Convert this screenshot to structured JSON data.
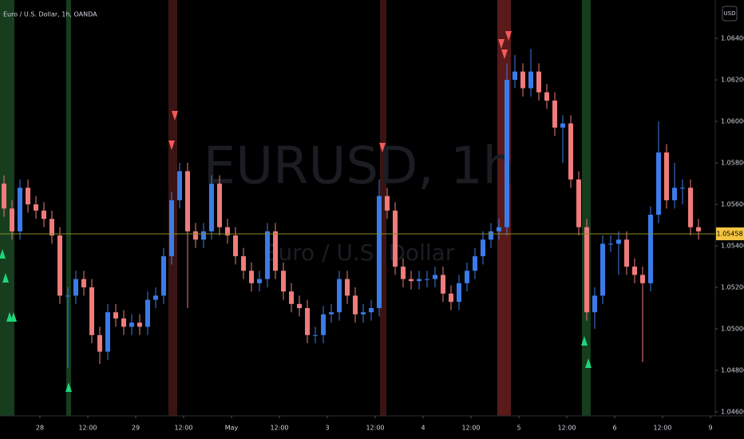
{
  "chart_data": {
    "type": "candlestick",
    "title": "Euro / U.S. Dollar, 1h, OANDA",
    "currency": "USD",
    "watermark": {
      "symbol": "EURUSD, 1h",
      "description": "Euro / U.S. Dollar"
    },
    "up_color": "#3b7be8",
    "down_color": "#ef7b7b",
    "current_price": 1.05458,
    "ylim": [
      1.04546,
      1.06585
    ],
    "yticks": [
      {
        "value": 1.064,
        "label": "1.06400"
      },
      {
        "value": 1.062,
        "label": "1.06200"
      },
      {
        "value": 1.06,
        "label": "1.06000"
      },
      {
        "value": 1.058,
        "label": "1.05800"
      },
      {
        "value": 1.056,
        "label": "1.05600"
      },
      {
        "value": 1.054,
        "label": "1.05400"
      },
      {
        "value": 1.052,
        "label": "1.05200"
      },
      {
        "value": 1.05,
        "label": "1.05000"
      },
      {
        "value": 1.048,
        "label": "1.04800"
      },
      {
        "value": 1.046,
        "label": "1.04600"
      }
    ],
    "xlim": [
      -0.5,
      89
    ],
    "xticks": [
      {
        "value": 4.5,
        "label": "28"
      },
      {
        "value": 10.5,
        "label": "12:00"
      },
      {
        "value": 16.5,
        "label": "29"
      },
      {
        "value": 22.5,
        "label": "12:00"
      },
      {
        "value": 28.5,
        "label": "May"
      },
      {
        "value": 34.5,
        "label": "12:00"
      },
      {
        "value": 40.5,
        "label": "3"
      },
      {
        "value": 46.5,
        "label": "12:00"
      },
      {
        "value": 52.5,
        "label": "4"
      },
      {
        "value": 58.5,
        "label": "12:00"
      },
      {
        "value": 64.5,
        "label": "5"
      },
      {
        "value": 70.5,
        "label": "12:00"
      },
      {
        "value": 76.5,
        "label": "6"
      },
      {
        "value": 82.5,
        "label": "12:00"
      },
      {
        "value": 88.5,
        "label": "9"
      }
    ],
    "candles": [
      [
        1.057,
        1.0574,
        1.0554,
        1.0558
      ],
      [
        1.0558,
        1.0562,
        1.0543,
        1.0547
      ],
      [
        1.0547,
        1.0572,
        1.0543,
        1.0568
      ],
      [
        1.0568,
        1.0572,
        1.0556,
        1.056
      ],
      [
        1.056,
        1.0564,
        1.0553,
        1.0557
      ],
      [
        1.0557,
        1.0561,
        1.0549,
        1.0553
      ],
      [
        1.0553,
        1.0557,
        1.0541,
        1.0545
      ],
      [
        1.0545,
        1.0549,
        1.0512,
        1.0516
      ],
      [
        1.0516,
        1.052,
        1.0481,
        1.0516
      ],
      [
        1.0516,
        1.0528,
        1.0512,
        1.0524
      ],
      [
        1.0524,
        1.0528,
        1.0516,
        1.052
      ],
      [
        1.052,
        1.0524,
        1.0493,
        1.0497
      ],
      [
        1.0497,
        1.0501,
        1.0483,
        1.0489
      ],
      [
        1.0489,
        1.0512,
        1.0485,
        1.0508
      ],
      [
        1.0508,
        1.0512,
        1.0501,
        1.0505
      ],
      [
        1.0505,
        1.0509,
        1.0497,
        1.0501
      ],
      [
        1.0501,
        1.0507,
        1.0497,
        1.0503
      ],
      [
        1.0503,
        1.0507,
        1.0497,
        1.0501
      ],
      [
        1.0501,
        1.0518,
        1.0497,
        1.0514
      ],
      [
        1.0514,
        1.052,
        1.051,
        1.0516
      ],
      [
        1.0516,
        1.0539,
        1.0512,
        1.0535
      ],
      [
        1.0535,
        1.0566,
        1.0531,
        1.0562
      ],
      [
        1.0562,
        1.058,
        1.0558,
        1.0576
      ],
      [
        1.0576,
        1.058,
        1.051,
        1.0547
      ],
      [
        1.0547,
        1.0551,
        1.0539,
        1.0543
      ],
      [
        1.0543,
        1.0551,
        1.0539,
        1.0547
      ],
      [
        1.0547,
        1.0574,
        1.0543,
        1.057
      ],
      [
        1.057,
        1.0574,
        1.0545,
        1.0549
      ],
      [
        1.0549,
        1.0553,
        1.0541,
        1.0545
      ],
      [
        1.0545,
        1.0549,
        1.0531,
        1.0535
      ],
      [
        1.0535,
        1.0539,
        1.0524,
        1.0528
      ],
      [
        1.0528,
        1.0532,
        1.0518,
        1.0522
      ],
      [
        1.0522,
        1.0528,
        1.0518,
        1.0524
      ],
      [
        1.0524,
        1.0551,
        1.052,
        1.0547
      ],
      [
        1.0547,
        1.0551,
        1.0524,
        1.0528
      ],
      [
        1.0528,
        1.0532,
        1.0514,
        1.0518
      ],
      [
        1.0518,
        1.0522,
        1.0508,
        1.0512
      ],
      [
        1.0512,
        1.0516,
        1.0506,
        1.051
      ],
      [
        1.051,
        1.0514,
        1.0493,
        1.0497
      ],
      [
        1.0497,
        1.0501,
        1.0493,
        1.0497
      ],
      [
        1.0497,
        1.0511,
        1.0493,
        1.0507
      ],
      [
        1.0507,
        1.0512,
        1.0503,
        1.0508
      ],
      [
        1.0508,
        1.0528,
        1.0504,
        1.0524
      ],
      [
        1.0524,
        1.0528,
        1.0512,
        1.0516
      ],
      [
        1.0516,
        1.052,
        1.0503,
        1.0507
      ],
      [
        1.0507,
        1.0512,
        1.0503,
        1.0508
      ],
      [
        1.0508,
        1.0514,
        1.0504,
        1.051
      ],
      [
        1.051,
        1.0572,
        1.0506,
        1.0564
      ],
      [
        1.0564,
        1.0568,
        1.0553,
        1.0557
      ],
      [
        1.0557,
        1.0561,
        1.0526,
        1.053
      ],
      [
        1.053,
        1.0534,
        1.052,
        1.0524
      ],
      [
        1.0524,
        1.0528,
        1.0519,
        1.0523
      ],
      [
        1.0523,
        1.0528,
        1.0519,
        1.0524
      ],
      [
        1.0524,
        1.0528,
        1.052,
        1.0524
      ],
      [
        1.0524,
        1.053,
        1.052,
        1.0526
      ],
      [
        1.0526,
        1.053,
        1.0513,
        1.0517
      ],
      [
        1.0517,
        1.0521,
        1.0509,
        1.0513
      ],
      [
        1.0513,
        1.0526,
        1.0509,
        1.0522
      ],
      [
        1.0522,
        1.0532,
        1.0518,
        1.0528
      ],
      [
        1.0528,
        1.0539,
        1.0524,
        1.0535
      ],
      [
        1.0535,
        1.0547,
        1.0531,
        1.0543
      ],
      [
        1.0543,
        1.0551,
        1.0539,
        1.0547
      ],
      [
        1.0547,
        1.0553,
        1.0543,
        1.0549
      ],
      [
        1.0549,
        1.0628,
        1.0545,
        1.062
      ],
      [
        1.062,
        1.0632,
        1.0616,
        1.0624
      ],
      [
        1.0624,
        1.0628,
        1.0612,
        1.0616
      ],
      [
        1.0616,
        1.0635,
        1.0612,
        1.0624
      ],
      [
        1.0624,
        1.0628,
        1.061,
        1.0614
      ],
      [
        1.0614,
        1.0618,
        1.0606,
        1.061
      ],
      [
        1.061,
        1.0614,
        1.0593,
        1.0597
      ],
      [
        1.0597,
        1.0603,
        1.058,
        1.0599
      ],
      [
        1.0599,
        1.0603,
        1.0568,
        1.0572
      ],
      [
        1.0572,
        1.0576,
        1.0545,
        1.0549
      ],
      [
        1.0549,
        1.0553,
        1.0504,
        1.0508
      ],
      [
        1.0508,
        1.052,
        1.05,
        1.0516
      ],
      [
        1.0516,
        1.0545,
        1.0512,
        1.0541
      ],
      [
        1.0541,
        1.0545,
        1.0537,
        1.0541
      ],
      [
        1.0541,
        1.0547,
        1.0526,
        1.0543
      ],
      [
        1.0543,
        1.0547,
        1.0526,
        1.053
      ],
      [
        1.053,
        1.0534,
        1.0522,
        1.0526
      ],
      [
        1.0526,
        1.053,
        1.0484,
        1.0522
      ],
      [
        1.0522,
        1.0559,
        1.0518,
        1.0555
      ],
      [
        1.0555,
        1.06,
        1.0551,
        1.0585
      ],
      [
        1.0585,
        1.0589,
        1.0558,
        1.0562
      ],
      [
        1.0562,
        1.058,
        1.0558,
        1.0568
      ],
      [
        1.0568,
        1.0572,
        1.056,
        1.0568
      ],
      [
        1.0568,
        1.0572,
        1.0545,
        1.0549
      ],
      [
        1.0549,
        1.0553,
        1.0543,
        1.0547
      ]
    ]
  }
}
